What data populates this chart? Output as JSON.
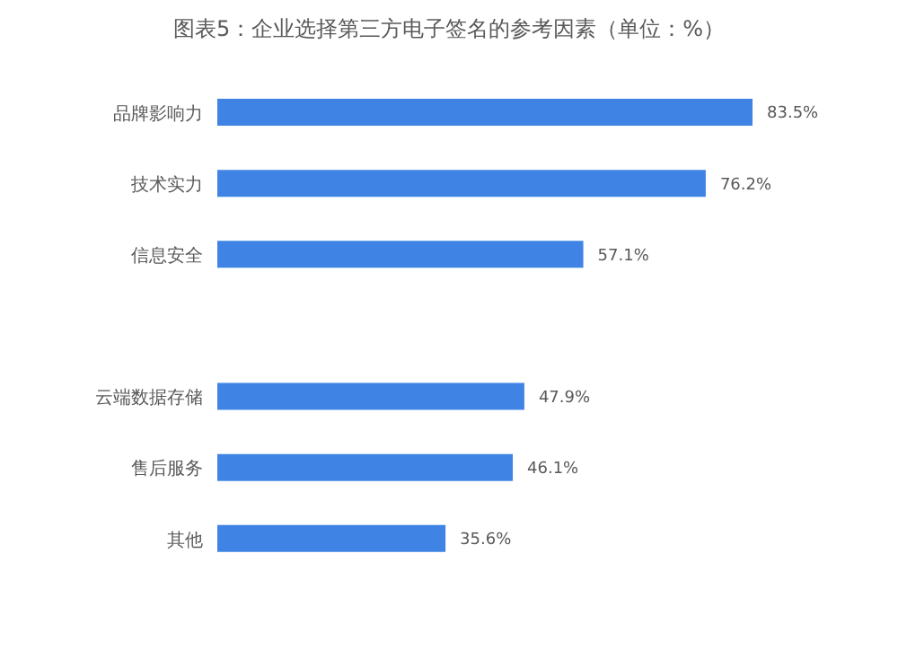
{
  "chart_data": {
    "type": "bar",
    "orientation": "horizontal",
    "title": "图表5：企业选择第三方电子签名的参考因素（单位：%）",
    "categories": [
      "品牌影响力",
      "技术实力",
      "信息安全",
      null,
      "云端数据存储",
      "售后服务",
      "其他"
    ],
    "values": [
      83.5,
      76.2,
      57.1,
      null,
      47.9,
      46.1,
      35.6
    ],
    "value_labels": [
      "83.5%",
      "76.2%",
      "57.1%",
      null,
      "47.9%",
      "46.1%",
      "35.6%"
    ],
    "color": "#3f84e5"
  }
}
